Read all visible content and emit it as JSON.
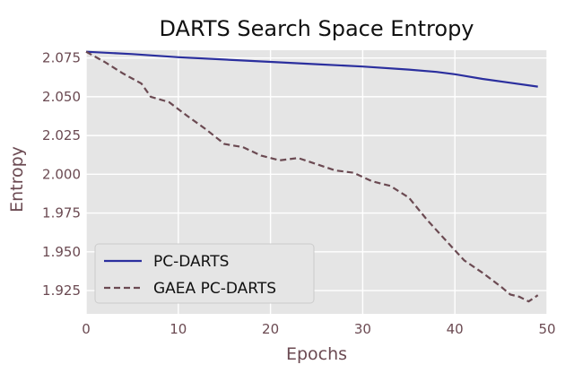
{
  "chart_data": {
    "type": "line",
    "title": "DARTS Search Space Entropy",
    "xlabel": "Epochs",
    "ylabel": "Entropy",
    "xlim": [
      0,
      50
    ],
    "ylim": [
      1.91,
      2.08
    ],
    "xticks": [
      0,
      10,
      20,
      30,
      40,
      50
    ],
    "yticks": [
      1.925,
      1.95,
      1.975,
      2.0,
      2.025,
      2.05,
      2.075
    ],
    "ytick_labels": [
      "1.925",
      "1.950",
      "1.975",
      "2.000",
      "2.025",
      "2.050",
      "2.075"
    ],
    "grid": true,
    "legend_position": "lower-left",
    "background": "#e5e5e5",
    "series": [
      {
        "name": "PC-DARTS",
        "style": "solid",
        "color": "#2b2f9e",
        "x": [
          0,
          5,
          10,
          15,
          20,
          25,
          30,
          35,
          38,
          40,
          43,
          46,
          49
        ],
        "y": [
          2.079,
          2.0775,
          2.0755,
          2.074,
          2.0725,
          2.071,
          2.0695,
          2.0675,
          2.066,
          2.0645,
          2.0615,
          2.059,
          2.0565
        ]
      },
      {
        "name": "GAEA PC-DARTS",
        "style": "dashed",
        "color": "#6b4a52",
        "x": [
          0,
          2,
          4,
          6,
          7,
          9,
          11,
          13,
          15,
          17,
          19,
          21,
          23,
          25,
          27,
          29,
          31,
          33,
          35,
          37,
          39,
          41,
          43,
          45,
          46,
          47,
          48,
          49
        ],
        "y": [
          2.079,
          2.0725,
          2.065,
          2.0585,
          2.05,
          2.0465,
          2.0375,
          2.029,
          2.0195,
          2.0175,
          2.012,
          2.009,
          2.0105,
          2.0065,
          2.0025,
          2.001,
          1.9955,
          1.9925,
          1.985,
          1.9705,
          1.9575,
          1.9445,
          1.9365,
          1.9275,
          1.9225,
          1.921,
          1.918,
          1.922
        ]
      }
    ]
  }
}
